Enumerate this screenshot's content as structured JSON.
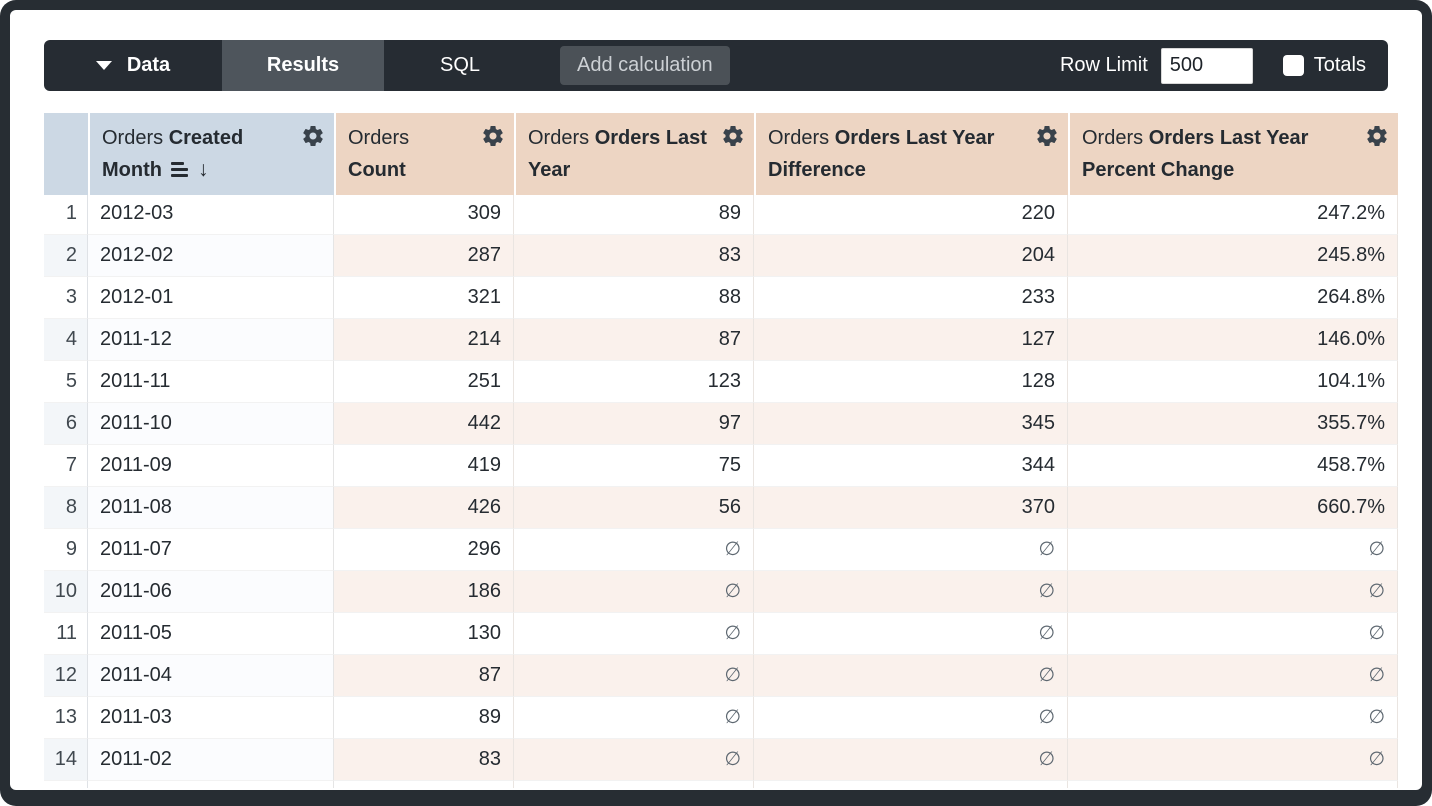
{
  "toolbar": {
    "data_tab": "Data",
    "results_tab": "Results",
    "sql_tab": "SQL",
    "add_calculation": "Add calculation",
    "row_limit_label": "Row Limit",
    "row_limit_value": "500",
    "totals_label": "Totals",
    "totals_checked": false
  },
  "colors": {
    "toolbar_bg": "#262c33",
    "active_tab_bg": "#4e555c",
    "button_bg": "#4b5157",
    "dimension_header_bg": "#ccd8e4",
    "measure_header_bg": "#edd5c3",
    "even_row_index_bg": "#f3f6f9",
    "even_row_measure_bg": "#faf1ec"
  },
  "table": {
    "columns": [
      {
        "role": "index",
        "prefix": "",
        "name": ""
      },
      {
        "role": "dimension",
        "prefix": "Orders",
        "name": "Created Month",
        "sorted": "descending",
        "gear": "settings"
      },
      {
        "role": "measure",
        "prefix": "Orders",
        "name": "Count",
        "gear": "settings"
      },
      {
        "role": "measure",
        "prefix": "Orders",
        "name": "Orders Last Year",
        "gear": "settings"
      },
      {
        "role": "measure",
        "prefix": "Orders",
        "name": "Orders Last Year Difference",
        "gear": "settings"
      },
      {
        "role": "measure",
        "prefix": "Orders",
        "name": "Orders Last Year Percent Change",
        "gear": "settings"
      }
    ],
    "null_symbol": "∅",
    "rows": [
      {
        "index": "1",
        "cells": [
          "2012-03",
          "309",
          "89",
          "220",
          "247.2%"
        ]
      },
      {
        "index": "2",
        "cells": [
          "2012-02",
          "287",
          "83",
          "204",
          "245.8%"
        ]
      },
      {
        "index": "3",
        "cells": [
          "2012-01",
          "321",
          "88",
          "233",
          "264.8%"
        ]
      },
      {
        "index": "4",
        "cells": [
          "2011-12",
          "214",
          "87",
          "127",
          "146.0%"
        ]
      },
      {
        "index": "5",
        "cells": [
          "2011-11",
          "251",
          "123",
          "128",
          "104.1%"
        ]
      },
      {
        "index": "6",
        "cells": [
          "2011-10",
          "442",
          "97",
          "345",
          "355.7%"
        ]
      },
      {
        "index": "7",
        "cells": [
          "2011-09",
          "419",
          "75",
          "344",
          "458.7%"
        ]
      },
      {
        "index": "8",
        "cells": [
          "2011-08",
          "426",
          "56",
          "370",
          "660.7%"
        ]
      },
      {
        "index": "9",
        "cells": [
          "2011-07",
          "296",
          "∅",
          "∅",
          "∅"
        ]
      },
      {
        "index": "10",
        "cells": [
          "2011-06",
          "186",
          "∅",
          "∅",
          "∅"
        ]
      },
      {
        "index": "11",
        "cells": [
          "2011-05",
          "130",
          "∅",
          "∅",
          "∅"
        ]
      },
      {
        "index": "12",
        "cells": [
          "2011-04",
          "87",
          "∅",
          "∅",
          "∅"
        ]
      },
      {
        "index": "13",
        "cells": [
          "2011-03",
          "89",
          "∅",
          "∅",
          "∅"
        ]
      },
      {
        "index": "14",
        "cells": [
          "2011-02",
          "83",
          "∅",
          "∅",
          "∅"
        ]
      }
    ]
  }
}
